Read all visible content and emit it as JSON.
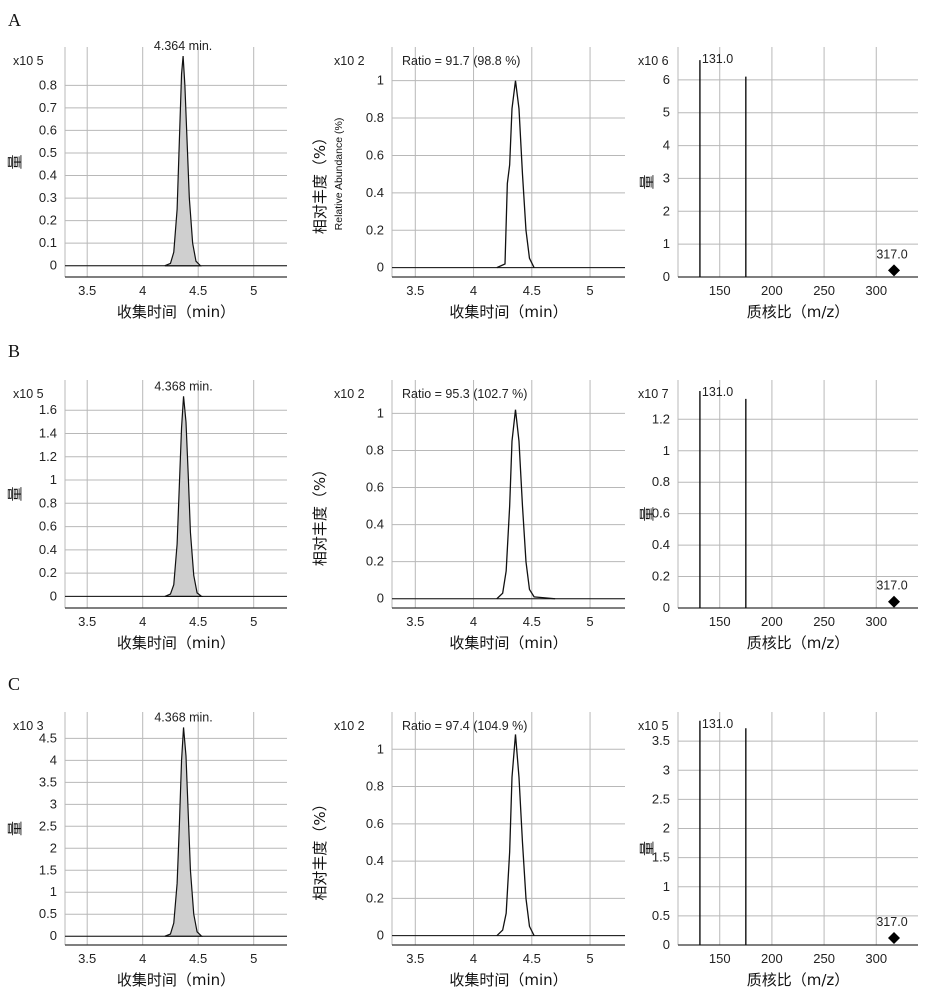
{
  "panels": [
    {
      "label": "A",
      "chrom_apex_label": "4.364 min.",
      "chrom_exp": "x10 5",
      "ratio_exp": "x10 2",
      "ratio_text": "Ratio = 91.7 (98.8 %)",
      "spec_exp": "x10 6",
      "spec_peak_label_1": "131.0",
      "spec_peak_label_2": "317.0"
    },
    {
      "label": "B",
      "chrom_apex_label": "4.368 min.",
      "chrom_exp": "x10 5",
      "ratio_exp": "x10 2",
      "ratio_text": "Ratio = 95.3 (102.7 %)",
      "spec_exp": "x10 7",
      "spec_peak_label_1": "131.0",
      "spec_peak_label_2": "317.0"
    },
    {
      "label": "C",
      "chrom_apex_label": "4.368 min.",
      "chrom_exp": "x10 3",
      "ratio_exp": "x10 2",
      "ratio_text": "Ratio = 97.4 (104.9 %)",
      "spec_exp": "x10 5",
      "spec_peak_label_1": "131.0",
      "spec_peak_label_2": "317.0"
    }
  ],
  "labels": {
    "time_axis": "收集时间（min）",
    "mz_axis": "质核比（m/z）",
    "intensity_axis": "量",
    "rel_abundance_axis": "相对丰度（%）",
    "rel_abundance_axis_en": "Relative Abundance (%)"
  },
  "colors": {
    "fill": "#cfcfcf",
    "grid": "#b8b8b8",
    "line": "#111111"
  },
  "chart_data": [
    {
      "type": "area",
      "panel": "A",
      "x": [
        4.2,
        4.25,
        4.28,
        4.31,
        4.33,
        4.35,
        4.364,
        4.38,
        4.4,
        4.42,
        4.45,
        4.48,
        4.52
      ],
      "y": [
        0,
        0.01,
        0.06,
        0.25,
        0.55,
        0.85,
        0.93,
        0.8,
        0.55,
        0.3,
        0.1,
        0.02,
        0
      ],
      "xlim": [
        3.3,
        5.3
      ],
      "ylim": [
        -0.05,
        0.97
      ],
      "xticks": [
        3.5,
        4,
        4.5,
        5
      ],
      "yticks": [
        0,
        0.1,
        0.2,
        0.3,
        0.4,
        0.5,
        0.6,
        0.7,
        0.8
      ]
    },
    {
      "type": "line",
      "panel": "A",
      "x": [
        4.2,
        4.27,
        4.29,
        4.31,
        4.33,
        4.36,
        4.39,
        4.42,
        4.45,
        4.48,
        4.52
      ],
      "y": [
        0,
        0.02,
        0.45,
        0.55,
        0.85,
        1.0,
        0.85,
        0.5,
        0.2,
        0.05,
        0
      ],
      "xlim": [
        3.3,
        5.3
      ],
      "ylim": [
        -0.05,
        1.18
      ],
      "xticks": [
        3.5,
        4,
        4.5,
        5
      ],
      "yticks": [
        0,
        0.2,
        0.4,
        0.6,
        0.8,
        1
      ]
    },
    {
      "type": "bar",
      "panel": "A",
      "x": [
        131.0,
        175,
        317.0
      ],
      "y": [
        6.6,
        6.1,
        0.2
      ],
      "xlim": [
        110,
        340
      ],
      "ylim": [
        0,
        7.0
      ],
      "xticks": [
        150,
        200,
        250,
        300
      ],
      "yticks": [
        0,
        1,
        2,
        3,
        4,
        5,
        6
      ]
    },
    {
      "type": "area",
      "panel": "B",
      "x": [
        4.2,
        4.25,
        4.28,
        4.31,
        4.33,
        4.35,
        4.368,
        4.39,
        4.41,
        4.43,
        4.46,
        4.49,
        4.53
      ],
      "y": [
        0,
        0.02,
        0.1,
        0.45,
        0.95,
        1.45,
        1.72,
        1.5,
        1.05,
        0.55,
        0.18,
        0.03,
        0
      ],
      "xlim": [
        3.3,
        5.3
      ],
      "ylim": [
        -0.1,
        1.86
      ],
      "xticks": [
        3.5,
        4,
        4.5,
        5
      ],
      "yticks": [
        0,
        0.2,
        0.4,
        0.6,
        0.8,
        1,
        1.2,
        1.4,
        1.6
      ]
    },
    {
      "type": "line",
      "panel": "B",
      "x": [
        4.2,
        4.25,
        4.28,
        4.31,
        4.33,
        4.36,
        4.39,
        4.42,
        4.45,
        4.48,
        4.52,
        4.7
      ],
      "y": [
        0,
        0.03,
        0.15,
        0.5,
        0.85,
        1.02,
        0.85,
        0.5,
        0.2,
        0.05,
        0.01,
        0
      ],
      "xlim": [
        3.3,
        5.3
      ],
      "ylim": [
        -0.05,
        1.18
      ],
      "xticks": [
        3.5,
        4,
        4.5,
        5
      ],
      "yticks": [
        0,
        0.2,
        0.4,
        0.6,
        0.8,
        1
      ]
    },
    {
      "type": "bar",
      "panel": "B",
      "x": [
        131.0,
        175,
        317.0
      ],
      "y": [
        1.38,
        1.33,
        0.04
      ],
      "xlim": [
        110,
        340
      ],
      "ylim": [
        0,
        1.45
      ],
      "xticks": [
        150,
        200,
        250,
        300
      ],
      "yticks": [
        0,
        0.2,
        0.4,
        0.6,
        0.8,
        1,
        1.2
      ]
    },
    {
      "type": "area",
      "panel": "C",
      "x": [
        4.2,
        4.25,
        4.28,
        4.31,
        4.33,
        4.35,
        4.368,
        4.39,
        4.41,
        4.43,
        4.46,
        4.49,
        4.53
      ],
      "y": [
        0,
        0.05,
        0.3,
        1.2,
        2.5,
        4.0,
        4.75,
        4.1,
        2.8,
        1.5,
        0.5,
        0.1,
        0
      ],
      "xlim": [
        3.3,
        5.3
      ],
      "ylim": [
        -0.2,
        5.1
      ],
      "xticks": [
        3.5,
        4,
        4.5,
        5
      ],
      "yticks": [
        0,
        0.5,
        1,
        1.5,
        2,
        2.5,
        3,
        3.5,
        4,
        4.5
      ]
    },
    {
      "type": "line",
      "panel": "C",
      "x": [
        4.2,
        4.25,
        4.28,
        4.31,
        4.33,
        4.36,
        4.39,
        4.42,
        4.45,
        4.48,
        4.52
      ],
      "y": [
        0,
        0.03,
        0.12,
        0.45,
        0.85,
        1.08,
        0.85,
        0.5,
        0.2,
        0.05,
        0
      ],
      "xlim": [
        3.3,
        5.3
      ],
      "ylim": [
        -0.05,
        1.2
      ],
      "xticks": [
        3.5,
        4,
        4.5,
        5
      ],
      "yticks": [
        0,
        0.2,
        0.4,
        0.6,
        0.8,
        1
      ]
    },
    {
      "type": "bar",
      "panel": "C",
      "x": [
        131.0,
        175,
        317.0
      ],
      "y": [
        3.85,
        3.72,
        0.12
      ],
      "xlim": [
        110,
        340
      ],
      "ylim": [
        0,
        4.0
      ],
      "xticks": [
        150,
        200,
        250,
        300
      ],
      "yticks": [
        0,
        0.5,
        1,
        1.5,
        2,
        2.5,
        3,
        3.5
      ]
    }
  ]
}
